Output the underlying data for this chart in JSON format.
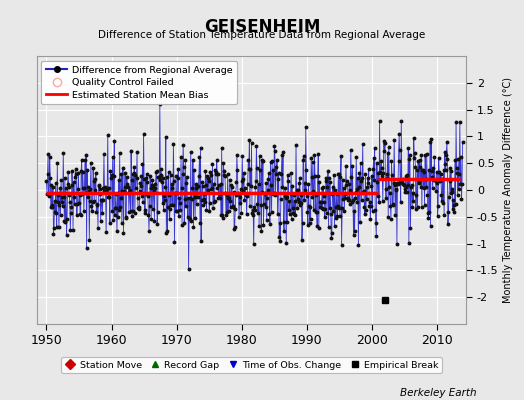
{
  "title": "GEISENHEIM",
  "subtitle": "Difference of Station Temperature Data from Regional Average",
  "ylabel": "Monthly Temperature Anomaly Difference (°C)",
  "xlabel_ticks": [
    1950,
    1960,
    1970,
    1980,
    1990,
    2000,
    2010
  ],
  "yticks": [
    -2.0,
    -1.5,
    -1.0,
    -0.5,
    0.0,
    0.5,
    1.0,
    1.5,
    2.0
  ],
  "ylim": [
    -2.5,
    2.5
  ],
  "xlim": [
    1948.5,
    2014.5
  ],
  "bias_level_early": -0.05,
  "bias_level_late": 0.2,
  "bias_break_year": 2001.0,
  "bias_start_year": 1950.0,
  "bias_end_year": 2013.5,
  "empirical_break_year": 2002.0,
  "empirical_break_value": -2.05,
  "background_color": "#e8e8e8",
  "plot_bg_color": "#e8e8e8",
  "line_color": "#2222cc",
  "marker_color": "#111111",
  "bias_color": "#ff0000",
  "grid_color": "#ffffff",
  "watermark": "Berkeley Earth",
  "seed": 42
}
